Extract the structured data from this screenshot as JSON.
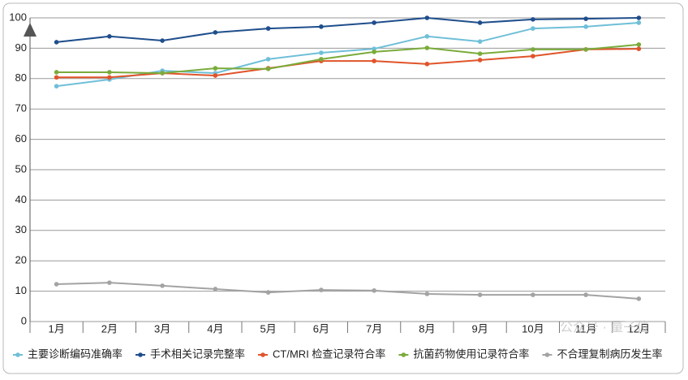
{
  "chart_data": {
    "type": "line",
    "categories": [
      "1月",
      "2月",
      "3月",
      "4月",
      "5月",
      "6月",
      "7月",
      "8月",
      "9月",
      "10月",
      "11月",
      "12月"
    ],
    "series": [
      {
        "name": "主要诊断编码准确率",
        "color": "#6fbfd8",
        "values": [
          77.5,
          79.7,
          82.6,
          81.8,
          86.4,
          88.5,
          89.8,
          93.9,
          92.2,
          96.5,
          97.1,
          98.4
        ]
      },
      {
        "name": "手术相关记录完整率",
        "color": "#1f4e8c",
        "values": [
          92.0,
          93.9,
          92.5,
          95.2,
          96.5,
          97.1,
          98.4,
          100,
          98.4,
          99.5,
          99.7,
          100
        ]
      },
      {
        "name": "CT/MRI 检查记录符合率",
        "color": "#e0542a",
        "values": [
          80.4,
          80.4,
          81.8,
          81.0,
          83.4,
          85.8,
          85.8,
          84.8,
          86.1,
          87.4,
          89.6,
          89.8
        ]
      },
      {
        "name": "抗菌药物使用记录符合率",
        "color": "#7aab3a",
        "values": [
          82.1,
          82.1,
          81.8,
          83.4,
          83.2,
          86.4,
          88.8,
          90.1,
          88.2,
          89.6,
          89.6,
          91.2
        ]
      },
      {
        "name": "不合理复制病历发生率",
        "color": "#a3a3a3",
        "values": [
          12.3,
          12.8,
          11.8,
          10.7,
          9.6,
          10.4,
          10.2,
          9.1,
          8.8,
          8.8,
          8.8,
          7.5
        ]
      }
    ],
    "ylim": [
      0,
      100
    ],
    "yticks": [
      0,
      10,
      20,
      30,
      40,
      50,
      60,
      70,
      80,
      90,
      100
    ],
    "grid": true,
    "legend": "bottom",
    "watermark": "公众号 · 量子位"
  }
}
